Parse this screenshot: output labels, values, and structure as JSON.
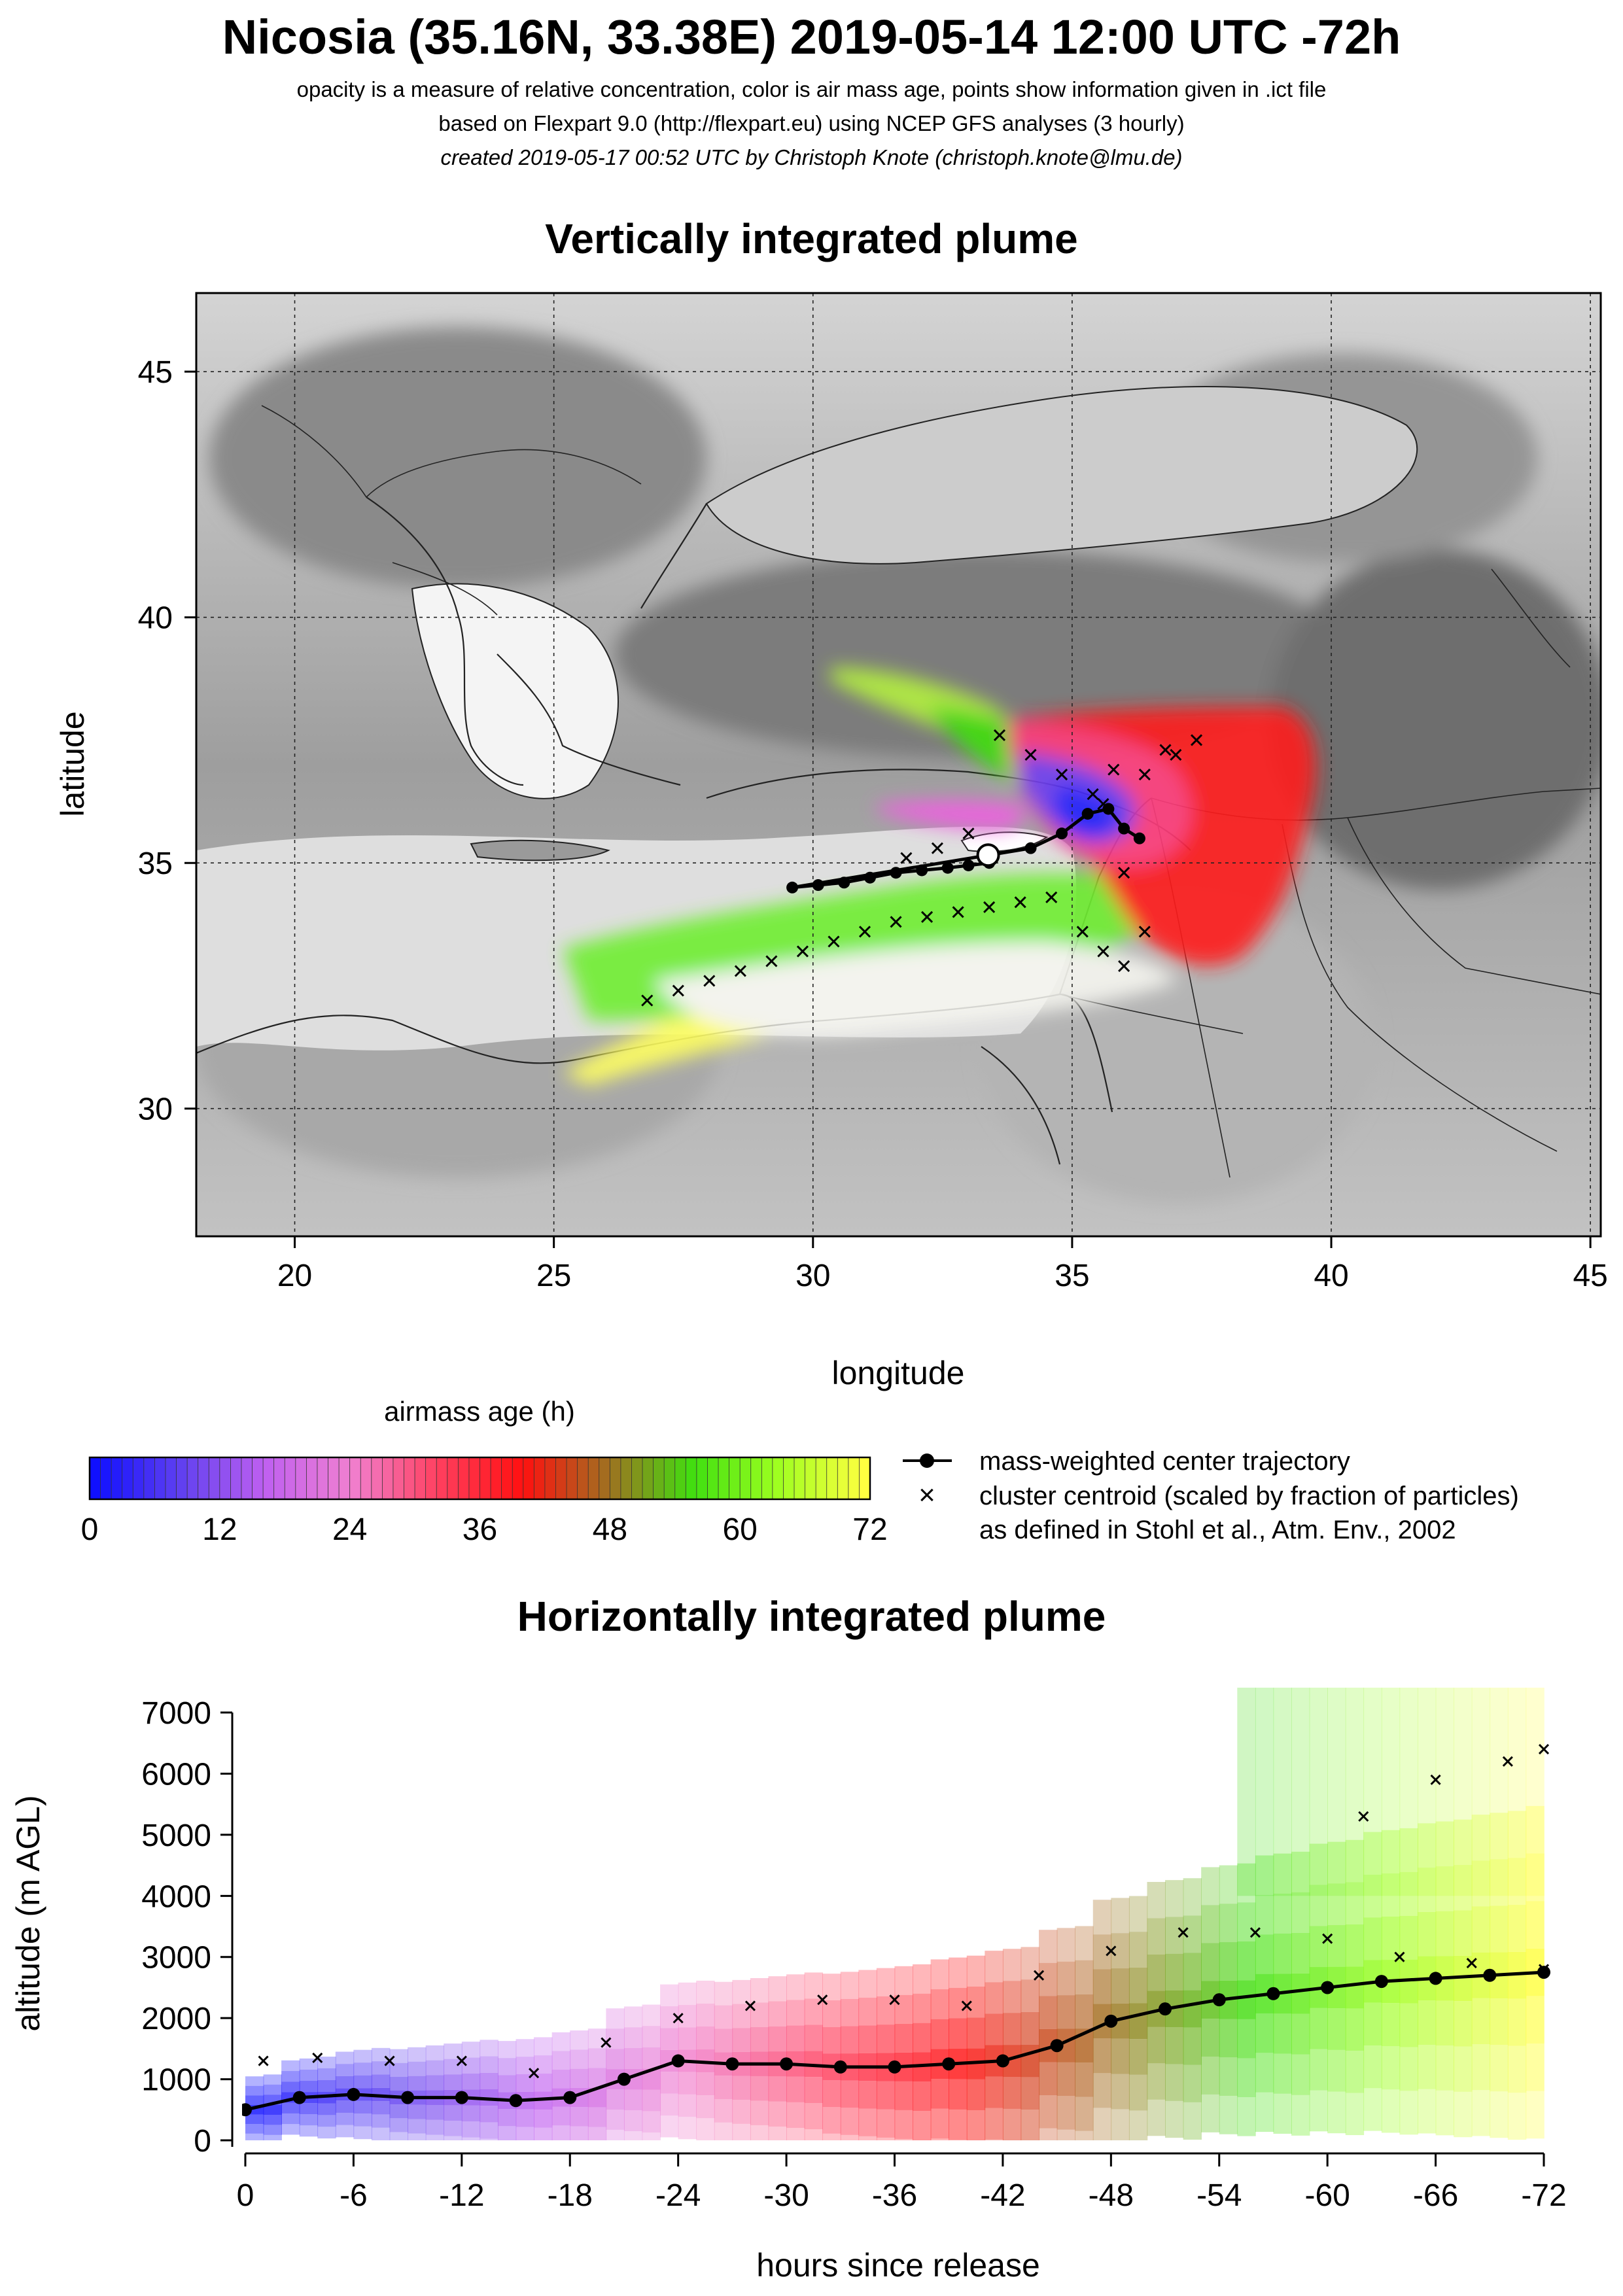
{
  "header": {
    "title": "Nicosia (35.16N, 33.38E) 2019-05-14 12:00 UTC -72h",
    "line1": "opacity is a measure of relative concentration, color is air mass age, points show information given in .ict file",
    "line2": "based on Flexpart 9.0 (http://flexpart.eu) using NCEP GFS analyses (3 hourly)",
    "line3": "created 2019-05-17 00:52 UTC by Christoph Knote (christoph.knote@lmu.de)"
  },
  "colors": {
    "age_scale": [
      "#1010ff",
      "#6040f0",
      "#c060f0",
      "#f080d0",
      "#ff4060",
      "#ff1010",
      "#a07020",
      "#40e010",
      "#a0ff20",
      "#ffff40"
    ]
  },
  "map": {
    "title": "Vertically integrated plume",
    "xlabel": "longitude",
    "ylabel": "latitude",
    "xticks": [
      "20",
      "25",
      "30",
      "35",
      "40",
      "45"
    ],
    "yticks": [
      "30",
      "35",
      "40",
      "45"
    ]
  },
  "colorbar": {
    "label": "airmass age (h)",
    "ticks": [
      "0",
      "12",
      "24",
      "36",
      "48",
      "60",
      "72"
    ]
  },
  "legend": {
    "line_label": "mass-weighted center trajectory",
    "cross_label1": "cluster centroid (scaled by fraction of particles)",
    "cross_label2": "as defined in Stohl et al., Atm. Env., 2002"
  },
  "vertical": {
    "title": "Horizontally integrated plume",
    "xlabel": "hours since release",
    "ylabel": "altitude (m AGL)",
    "xticks": [
      "0",
      "-6",
      "-12",
      "-18",
      "-24",
      "-30",
      "-36",
      "-42",
      "-48",
      "-54",
      "-60",
      "-66",
      "-72"
    ],
    "yticks": [
      "0",
      "1000",
      "2000",
      "3000",
      "4000",
      "5000",
      "6000",
      "7000"
    ]
  },
  "chart_data": [
    {
      "type": "scatter",
      "title": "Vertically integrated plume",
      "xlabel": "longitude",
      "ylabel": "latitude",
      "xlim": [
        18.1,
        45.2
      ],
      "ylim": [
        27.4,
        46.6
      ],
      "grid": true,
      "release_point": {
        "lon": 33.38,
        "lat": 35.16
      },
      "series": [
        {
          "name": "mass-weighted center trajectory",
          "x": [
            33.4,
            33.0,
            32.6,
            32.1,
            31.6,
            31.1,
            30.6,
            30.1,
            29.6,
            34.2,
            34.8,
            35.3,
            35.7,
            36.0,
            36.3
          ],
          "y": [
            35.0,
            34.95,
            34.9,
            34.85,
            34.8,
            34.7,
            34.6,
            34.55,
            34.5,
            35.3,
            35.6,
            36.0,
            36.1,
            35.7,
            35.5
          ]
        },
        {
          "name": "cluster centroid (scaled by fraction of particles)",
          "x": [
            26.8,
            27.4,
            28.0,
            28.6,
            29.2,
            29.8,
            30.4,
            31.0,
            31.6,
            32.2,
            32.8,
            33.4,
            34.0,
            34.6,
            35.2,
            35.6,
            36.0,
            36.4,
            36.0,
            35.6,
            36.4,
            37.0,
            37.4,
            36.8,
            35.8,
            35.4,
            34.8,
            34.2,
            33.6,
            33.0,
            32.4,
            31.8
          ],
          "y": [
            32.2,
            32.4,
            32.6,
            32.8,
            33.0,
            33.2,
            33.4,
            33.6,
            33.8,
            33.9,
            34.0,
            34.1,
            34.2,
            34.3,
            33.6,
            33.2,
            32.9,
            33.6,
            34.8,
            36.2,
            36.8,
            37.2,
            37.5,
            37.3,
            36.9,
            36.4,
            36.8,
            37.2,
            37.6,
            35.6,
            35.3,
            35.1
          ]
        }
      ]
    },
    {
      "type": "area",
      "title": "Horizontally integrated plume",
      "xlabel": "hours since release",
      "ylabel": "altitude (m AGL)",
      "xlim": [
        0,
        -72
      ],
      "ylim": [
        0,
        7000
      ],
      "series": [
        {
          "name": "mass-weighted center trajectory",
          "x": [
            0,
            -3,
            -6,
            -9,
            -12,
            -15,
            -18,
            -21,
            -24,
            -27,
            -30,
            -33,
            -36,
            -39,
            -42,
            -45,
            -48,
            -51,
            -54,
            -57,
            -60,
            -63,
            -66,
            -69,
            -72
          ],
          "y": [
            500,
            700,
            750,
            700,
            700,
            650,
            700,
            1000,
            1300,
            1250,
            1250,
            1200,
            1200,
            1250,
            1300,
            1550,
            1950,
            2150,
            2300,
            2400,
            2500,
            2600,
            2650,
            2700,
            2750
          ]
        },
        {
          "name": "cluster centroid (scaled by fraction of particles)",
          "x": [
            -1,
            -4,
            -8,
            -12,
            -16,
            -20,
            -24,
            -28,
            -32,
            -36,
            -40,
            -44,
            -48,
            -52,
            -56,
            -60,
            -64,
            -68,
            -72,
            -62,
            -66,
            -70,
            -72
          ],
          "y": [
            1300,
            1350,
            1300,
            1300,
            1100,
            1600,
            2000,
            2200,
            2300,
            2300,
            2200,
            2700,
            3100,
            3400,
            3400,
            3300,
            3000,
            2900,
            2800,
            5300,
            5900,
            6200,
            6400
          ]
        }
      ]
    }
  ]
}
